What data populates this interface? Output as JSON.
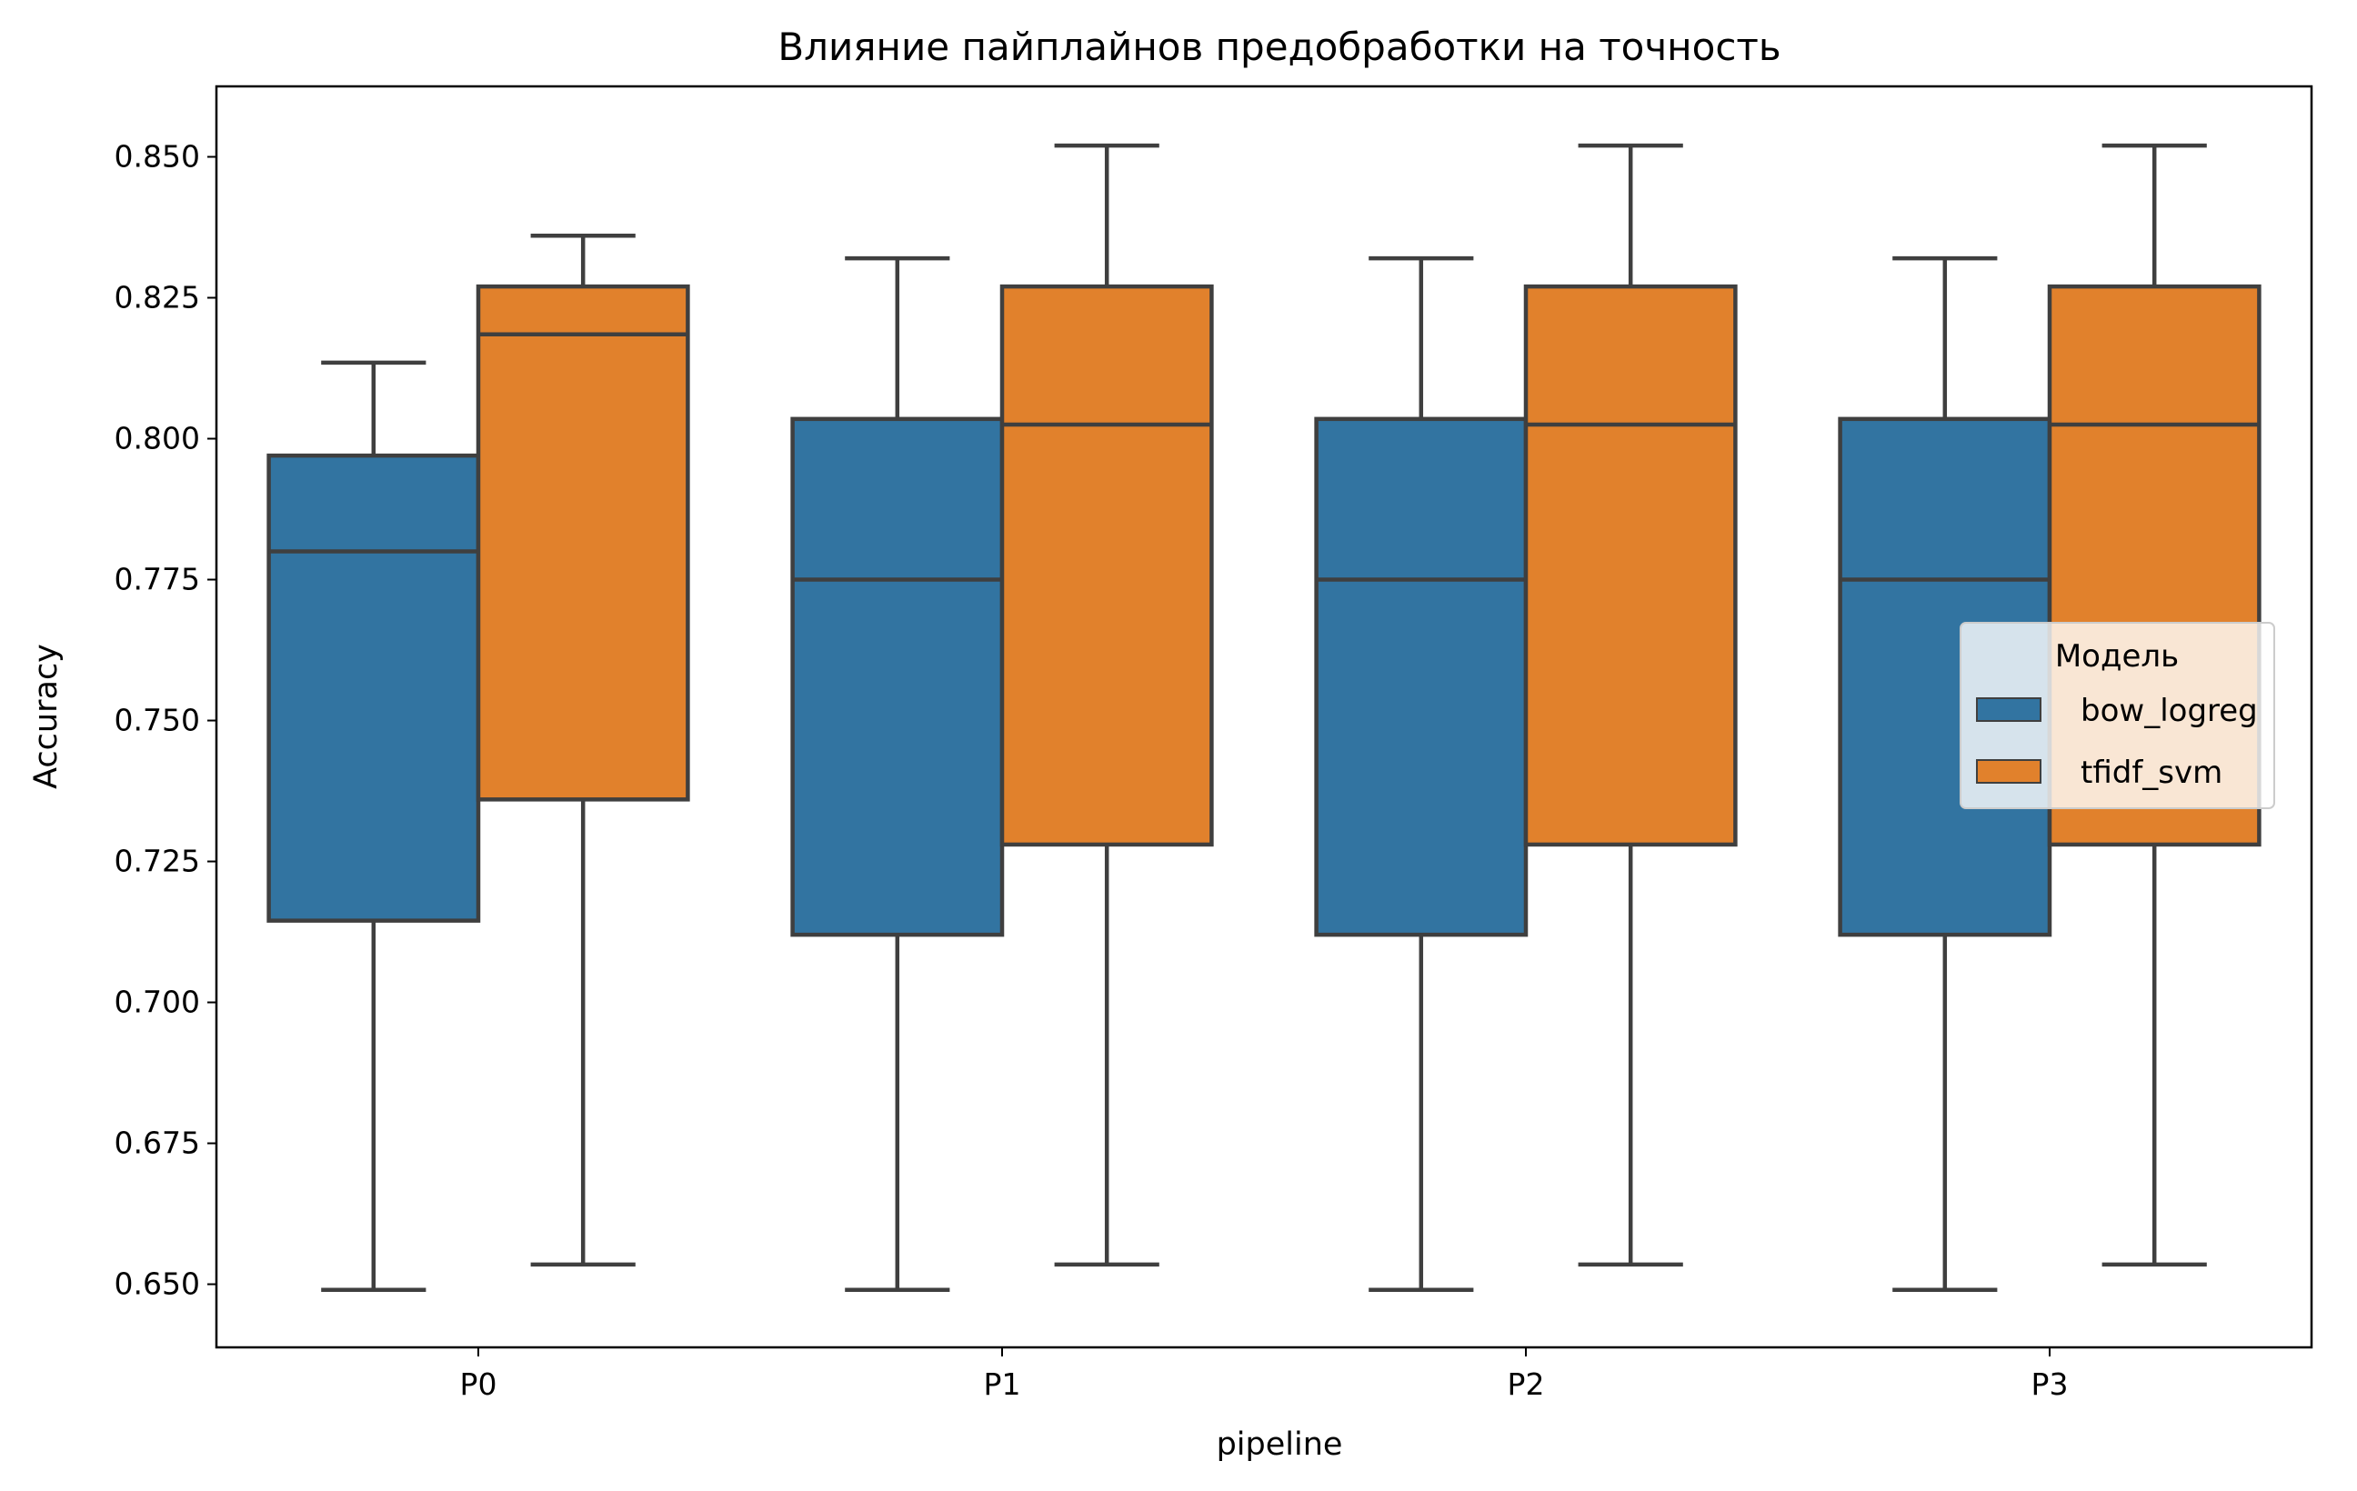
{
  "chart_data": {
    "type": "box",
    "title": "Влияние пайплайнов предобработки на точность",
    "xlabel": "pipeline",
    "ylabel": "Accuracy",
    "categories": [
      "P0",
      "P1",
      "P2",
      "P3"
    ],
    "ylim": [
      0.6388,
      0.8625
    ],
    "yticks": [
      0.65,
      0.675,
      0.7,
      0.725,
      0.75,
      0.775,
      0.8,
      0.825,
      0.85
    ],
    "ytick_labels": [
      "0.650",
      "0.675",
      "0.700",
      "0.725",
      "0.750",
      "0.775",
      "0.800",
      "0.825",
      "0.850"
    ],
    "legend": {
      "title": "Модель",
      "position": "center-right"
    },
    "grid": false,
    "series": [
      {
        "name": "bow_logreg",
        "color": "#3274a1",
        "boxes": [
          {
            "whislo": 0.649,
            "q1": 0.7145,
            "med": 0.78,
            "q3": 0.797,
            "whishi": 0.8135
          },
          {
            "whislo": 0.649,
            "q1": 0.712,
            "med": 0.775,
            "q3": 0.8035,
            "whishi": 0.832
          },
          {
            "whislo": 0.649,
            "q1": 0.712,
            "med": 0.775,
            "q3": 0.8035,
            "whishi": 0.832
          },
          {
            "whislo": 0.649,
            "q1": 0.712,
            "med": 0.775,
            "q3": 0.8035,
            "whishi": 0.832
          }
        ]
      },
      {
        "name": "tfidf_svm",
        "color": "#e1812c",
        "boxes": [
          {
            "whislo": 0.6535,
            "q1": 0.736,
            "med": 0.8185,
            "q3": 0.827,
            "whishi": 0.836
          },
          {
            "whislo": 0.6535,
            "q1": 0.728,
            "med": 0.8025,
            "q3": 0.827,
            "whishi": 0.852
          },
          {
            "whislo": 0.6535,
            "q1": 0.728,
            "med": 0.8025,
            "q3": 0.827,
            "whishi": 0.852
          },
          {
            "whislo": 0.6535,
            "q1": 0.728,
            "med": 0.8025,
            "q3": 0.827,
            "whishi": 0.852
          }
        ]
      }
    ]
  }
}
